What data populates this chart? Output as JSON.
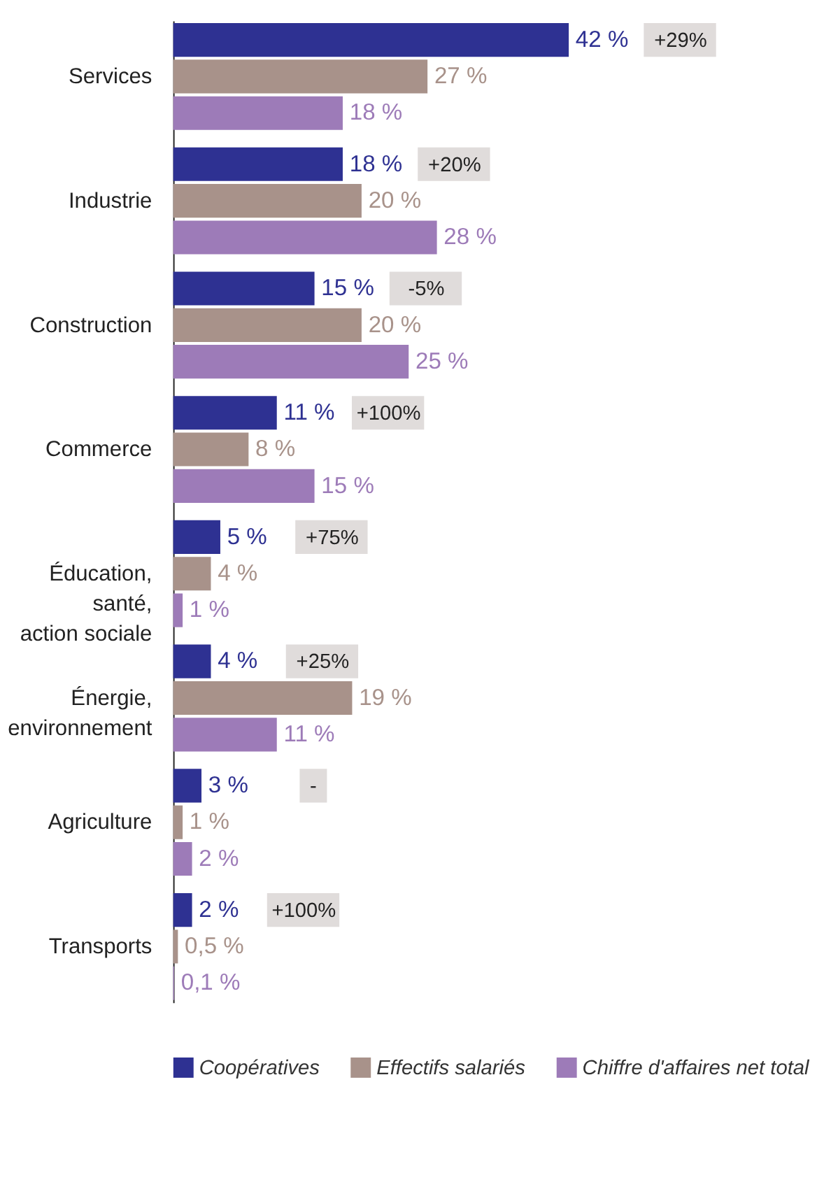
{
  "chart_data": {
    "type": "bar",
    "orientation": "horizontal",
    "categories": [
      "Services",
      "Industrie",
      "Construction",
      "Commerce",
      "Éducation,\nsanté,\naction sociale",
      "Énergie,\nenvironnement",
      "Agriculture",
      "Transports"
    ],
    "series": [
      {
        "name": "Coopératives",
        "color": "#2e3192",
        "values": [
          42,
          18,
          15,
          11,
          5,
          4,
          3,
          2
        ],
        "value_labels": [
          "42 %",
          "18 %",
          "15 %",
          "11 %",
          "5 %",
          "4 %",
          "3 %",
          "2 %"
        ]
      },
      {
        "name": "Effectifs salariés",
        "color": "#a8928a",
        "values": [
          27,
          20,
          20,
          8,
          4,
          19,
          1,
          0.5
        ],
        "value_labels": [
          "27 %",
          "20 %",
          "20 %",
          "8 %",
          "4 %",
          "19 %",
          "1 %",
          "0,5 %"
        ]
      },
      {
        "name": "Chiffre d'affaires net total",
        "color": "#9d7bb8",
        "values": [
          18,
          28,
          25,
          15,
          1,
          11,
          2,
          0.1
        ],
        "value_labels": [
          "18 %",
          "28 %",
          "25 %",
          "15 %",
          "1 %",
          "11 %",
          "2 %",
          "0,1 %"
        ]
      }
    ],
    "annotations": [
      "+29%",
      "+20%",
      "-5%",
      "+100%",
      "+75%",
      "+25%",
      "-",
      "+100%"
    ],
    "tick_labels": "y",
    "legend": "bottom"
  }
}
